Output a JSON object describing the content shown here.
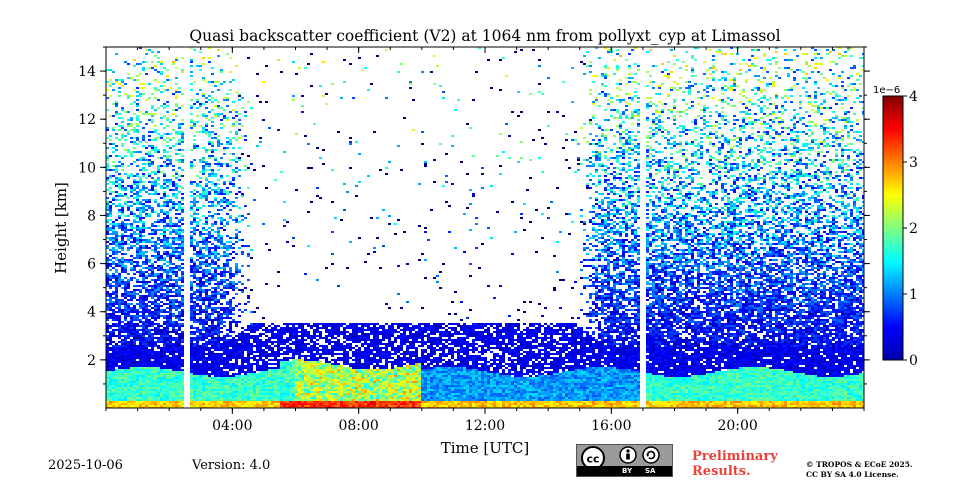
{
  "chart_data": {
    "type": "heatmap",
    "title": "Quasi backscatter coefficient (V2) at 1064 nm from pollyxt_cyp at Limassol",
    "xlabel": "Time [UTC]",
    "ylabel": "Height [km]",
    "xlim": [
      0,
      24
    ],
    "ylim": [
      0,
      15
    ],
    "x_ticks": [
      4,
      8,
      12,
      16,
      20
    ],
    "x_tick_labels": [
      "04:00",
      "08:00",
      "12:00",
      "16:00",
      "20:00"
    ],
    "y_ticks": [
      2,
      4,
      6,
      8,
      10,
      12,
      14
    ],
    "y_tick_labels": [
      "2",
      "4",
      "6",
      "8",
      "10",
      "12",
      "14"
    ],
    "colorbar": {
      "min": 0,
      "max": 4,
      "ticks": [
        0,
        1,
        2,
        3,
        4
      ],
      "tick_labels": [
        "0",
        "1",
        "2",
        "3",
        "4"
      ],
      "multiplier": "1e−6",
      "colormap": "jet"
    },
    "data_gaps_utc": [
      2.55,
      17.0
    ],
    "approximate_structure": {
      "boundary_layer_top_km": 1.5,
      "boundary_layer_peak_value": 2.2,
      "surface_layer_value": 3.0,
      "noise_top_km_night": 15,
      "day_noise_suppressed_hours": [
        3.5,
        15.8
      ]
    }
  },
  "footer": {
    "date": "2025-10-06",
    "version": "Version: 4.0",
    "license_badge": {
      "by": "BY",
      "sa": "SA"
    },
    "preliminary": [
      "Preliminary",
      "Results."
    ],
    "copyright": [
      "© TROPOS & ECoE 2025.",
      "CC BY SA 4.0 License."
    ]
  },
  "colors": {
    "preliminary_text": "#e8423a",
    "badge_background": "#9a9a9a"
  }
}
